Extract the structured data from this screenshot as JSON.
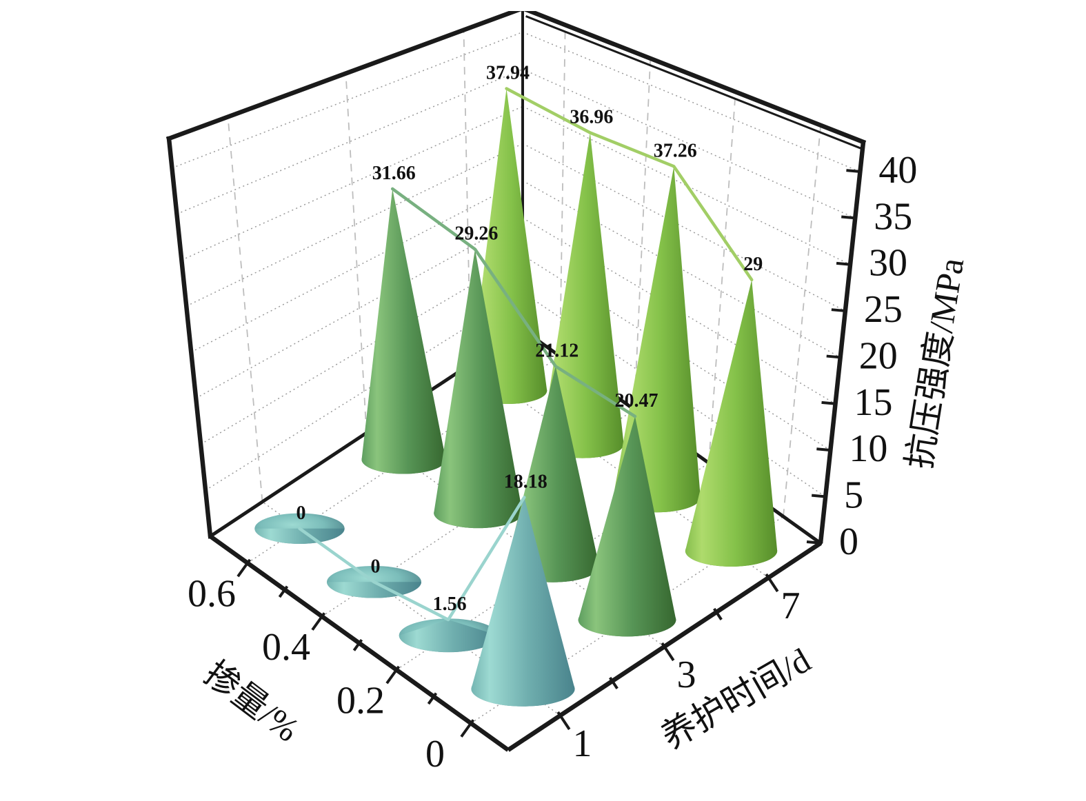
{
  "chart_data": {
    "type": "bar",
    "style": "3d-cone-pillars",
    "title": "",
    "background": "#ffffff",
    "frame_color": "#1a1a1a",
    "grid_color": "#9a9a9a",
    "grid_dash_color": "#bdbdbd",
    "label_color": "#111111",
    "axes": {
      "x": {
        "title": "养护时间/d",
        "categories": [
          "1",
          "3",
          "7"
        ]
      },
      "y": {
        "title": "掺量/%",
        "categories": [
          "0",
          "0.2",
          "0.4",
          "0.6"
        ]
      },
      "z": {
        "title": "抗压强度/MPa",
        "ticks": [
          "0",
          "5",
          "10",
          "15",
          "20",
          "25",
          "30",
          "35",
          "40"
        ],
        "range": [
          0,
          43.2
        ]
      }
    },
    "series": [
      {
        "time": "7",
        "points": [
          {
            "dosage": "0",
            "value": 29,
            "label": "29"
          },
          {
            "dosage": "0.2",
            "value": 37.26,
            "label": "37.26"
          },
          {
            "dosage": "0.4",
            "value": 36.96,
            "label": "36.96"
          },
          {
            "dosage": "0.6",
            "value": 37.94,
            "label": "37.94"
          }
        ],
        "colors": {
          "body": [
            "#86BE4E",
            "#AEDB6C",
            "#84C149",
            "#568D2A"
          ],
          "base": [
            "#AEDB6C",
            "#84C149",
            "#4A7A24"
          ],
          "line": "#A2CE66"
        }
      },
      {
        "time": "3",
        "points": [
          {
            "dosage": "0",
            "value": 20.47,
            "label": "20.47"
          },
          {
            "dosage": "0.2",
            "value": 21.12,
            "label": "21.12"
          },
          {
            "dosage": "0.4",
            "value": 29.26,
            "label": "29.26"
          },
          {
            "dosage": "0.6",
            "value": 31.66,
            "label": "31.66"
          }
        ],
        "colors": {
          "body": [
            "#5E9E60",
            "#8AC47C",
            "#579556",
            "#36672F"
          ],
          "base": [
            "#8AC47C",
            "#579556",
            "#2F5B33"
          ],
          "line": "#78B080"
        }
      },
      {
        "time": "1",
        "points": [
          {
            "dosage": "0",
            "value": 18.18,
            "label": "18.18"
          },
          {
            "dosage": "0.2",
            "value": 1.56,
            "label": "1.56"
          },
          {
            "dosage": "0.4",
            "value": 0,
            "label": "0"
          },
          {
            "dosage": "0.6",
            "value": 0,
            "label": "0"
          }
        ],
        "colors": {
          "body": [
            "#74B5B2",
            "#9DDAD2",
            "#6FAEAE",
            "#49838C"
          ],
          "base": [
            "#9DDAD2",
            "#7BBDBA",
            "#3D6F79"
          ],
          "line": "#9AD4CE"
        }
      }
    ]
  }
}
